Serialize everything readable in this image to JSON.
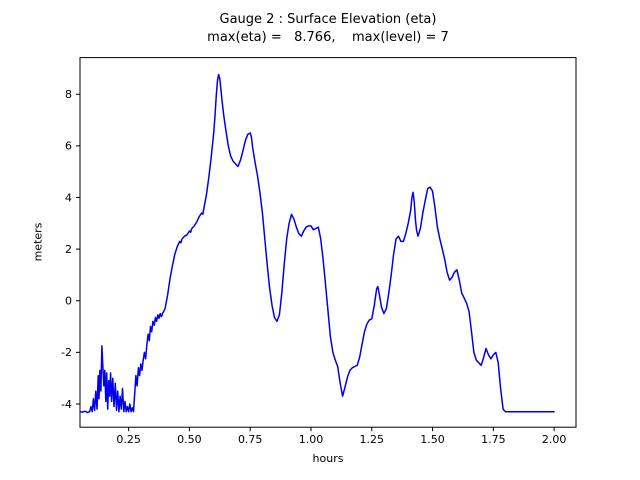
{
  "chart_data": {
    "type": "line",
    "title": "Gauge 2 : Surface Elevation (eta)",
    "subtitle": "max(eta) =   8.766,    max(level) = 7",
    "xlabel": "hours",
    "ylabel": "meters",
    "xlim": [
      0.05,
      2.09
    ],
    "ylim": [
      -4.9,
      9.42
    ],
    "xticks": [
      0.25,
      0.5,
      0.75,
      1.0,
      1.25,
      1.5,
      1.75,
      2.0
    ],
    "xtick_labels": [
      "0.25",
      "0.50",
      "0.75",
      "1.00",
      "1.25",
      "1.50",
      "1.75",
      "2.00"
    ],
    "yticks": [
      -4,
      -2,
      0,
      2,
      4,
      6,
      8
    ],
    "ytick_labels": [
      "-4",
      "-2",
      "0",
      "2",
      "4",
      "6",
      "8"
    ],
    "grid": false,
    "legend": null,
    "line_color": "#0000ee",
    "max_eta": 8.766,
    "max_level": 7,
    "series": [
      {
        "name": "eta",
        "points": [
          [
            0.05,
            -4.3
          ],
          [
            0.06,
            -4.32
          ],
          [
            0.07,
            -4.28
          ],
          [
            0.08,
            -4.33
          ],
          [
            0.09,
            -4.3
          ],
          [
            0.095,
            -4.1
          ],
          [
            0.1,
            -4.3
          ],
          [
            0.105,
            -3.8
          ],
          [
            0.11,
            -4.25
          ],
          [
            0.115,
            -3.5
          ],
          [
            0.12,
            -4.2
          ],
          [
            0.125,
            -2.9
          ],
          [
            0.128,
            -3.8
          ],
          [
            0.132,
            -2.7
          ],
          [
            0.136,
            -3.5
          ],
          [
            0.14,
            -1.75
          ],
          [
            0.144,
            -2.6
          ],
          [
            0.148,
            -3.3
          ],
          [
            0.152,
            -2.7
          ],
          [
            0.156,
            -3.9
          ],
          [
            0.16,
            -2.8
          ],
          [
            0.164,
            -4.2
          ],
          [
            0.168,
            -3.1
          ],
          [
            0.172,
            -3.7
          ],
          [
            0.176,
            -2.8
          ],
          [
            0.18,
            -3.9
          ],
          [
            0.185,
            -3.0
          ],
          [
            0.19,
            -4.1
          ],
          [
            0.195,
            -3.2
          ],
          [
            0.2,
            -4.25
          ],
          [
            0.205,
            -3.5
          ],
          [
            0.21,
            -4.3
          ],
          [
            0.215,
            -3.7
          ],
          [
            0.22,
            -4.2
          ],
          [
            0.225,
            -3.4
          ],
          [
            0.23,
            -4.3
          ],
          [
            0.235,
            -3.9
          ],
          [
            0.24,
            -4.3
          ],
          [
            0.245,
            -4.1
          ],
          [
            0.25,
            -4.3
          ],
          [
            0.255,
            -4.0
          ],
          [
            0.26,
            -4.3
          ],
          [
            0.265,
            -4.15
          ],
          [
            0.27,
            -4.3
          ],
          [
            0.275,
            -3.6
          ],
          [
            0.28,
            -2.9
          ],
          [
            0.285,
            -3.3
          ],
          [
            0.29,
            -2.6
          ],
          [
            0.295,
            -2.9
          ],
          [
            0.3,
            -2.45
          ],
          [
            0.305,
            -2.7
          ],
          [
            0.31,
            -2.3
          ],
          [
            0.315,
            -2.0
          ],
          [
            0.32,
            -2.25
          ],
          [
            0.325,
            -1.7
          ],
          [
            0.33,
            -1.3
          ],
          [
            0.335,
            -1.55
          ],
          [
            0.34,
            -1.0
          ],
          [
            0.345,
            -1.2
          ],
          [
            0.35,
            -0.8
          ],
          [
            0.355,
            -0.95
          ],
          [
            0.36,
            -0.65
          ],
          [
            0.365,
            -0.8
          ],
          [
            0.37,
            -0.55
          ],
          [
            0.375,
            -0.68
          ],
          [
            0.38,
            -0.5
          ],
          [
            0.385,
            -0.62
          ],
          [
            0.39,
            -0.48
          ],
          [
            0.395,
            -0.4
          ],
          [
            0.4,
            -0.3
          ],
          [
            0.41,
            0.2
          ],
          [
            0.42,
            0.85
          ],
          [
            0.43,
            1.35
          ],
          [
            0.44,
            1.8
          ],
          [
            0.45,
            2.1
          ],
          [
            0.46,
            2.3
          ],
          [
            0.465,
            2.25
          ],
          [
            0.47,
            2.4
          ],
          [
            0.48,
            2.5
          ],
          [
            0.49,
            2.55
          ],
          [
            0.5,
            2.7
          ],
          [
            0.505,
            2.65
          ],
          [
            0.51,
            2.8
          ],
          [
            0.52,
            2.9
          ],
          [
            0.53,
            3.05
          ],
          [
            0.54,
            3.25
          ],
          [
            0.55,
            3.4
          ],
          [
            0.555,
            3.35
          ],
          [
            0.56,
            3.6
          ],
          [
            0.57,
            4.1
          ],
          [
            0.58,
            4.8
          ],
          [
            0.59,
            5.6
          ],
          [
            0.6,
            6.5
          ],
          [
            0.605,
            7.1
          ],
          [
            0.61,
            7.9
          ],
          [
            0.615,
            8.5
          ],
          [
            0.62,
            8.766
          ],
          [
            0.625,
            8.6
          ],
          [
            0.63,
            8.15
          ],
          [
            0.635,
            7.7
          ],
          [
            0.64,
            7.25
          ],
          [
            0.65,
            6.6
          ],
          [
            0.66,
            6.0
          ],
          [
            0.67,
            5.6
          ],
          [
            0.68,
            5.4
          ],
          [
            0.69,
            5.3
          ],
          [
            0.7,
            5.2
          ],
          [
            0.71,
            5.45
          ],
          [
            0.72,
            5.8
          ],
          [
            0.73,
            6.2
          ],
          [
            0.74,
            6.45
          ],
          [
            0.75,
            6.5
          ],
          [
            0.755,
            6.35
          ],
          [
            0.76,
            5.95
          ],
          [
            0.77,
            5.35
          ],
          [
            0.78,
            4.85
          ],
          [
            0.79,
            4.2
          ],
          [
            0.8,
            3.4
          ],
          [
            0.81,
            2.4
          ],
          [
            0.82,
            1.4
          ],
          [
            0.83,
            0.5
          ],
          [
            0.84,
            -0.2
          ],
          [
            0.85,
            -0.65
          ],
          [
            0.86,
            -0.8
          ],
          [
            0.87,
            -0.55
          ],
          [
            0.88,
            0.3
          ],
          [
            0.89,
            1.4
          ],
          [
            0.9,
            2.4
          ],
          [
            0.91,
            3.0
          ],
          [
            0.92,
            3.35
          ],
          [
            0.93,
            3.15
          ],
          [
            0.94,
            2.85
          ],
          [
            0.95,
            2.6
          ],
          [
            0.96,
            2.5
          ],
          [
            0.97,
            2.7
          ],
          [
            0.98,
            2.85
          ],
          [
            0.99,
            2.9
          ],
          [
            1.0,
            2.9
          ],
          [
            1.01,
            2.75
          ],
          [
            1.02,
            2.8
          ],
          [
            1.03,
            2.85
          ],
          [
            1.04,
            2.4
          ],
          [
            1.05,
            1.6
          ],
          [
            1.06,
            0.6
          ],
          [
            1.07,
            -0.4
          ],
          [
            1.08,
            -1.4
          ],
          [
            1.09,
            -2.0
          ],
          [
            1.1,
            -2.3
          ],
          [
            1.11,
            -2.55
          ],
          [
            1.12,
            -3.2
          ],
          [
            1.13,
            -3.7
          ],
          [
            1.14,
            -3.35
          ],
          [
            1.15,
            -2.95
          ],
          [
            1.16,
            -2.7
          ],
          [
            1.17,
            -2.6
          ],
          [
            1.18,
            -2.55
          ],
          [
            1.19,
            -2.5
          ],
          [
            1.2,
            -2.2
          ],
          [
            1.21,
            -1.7
          ],
          [
            1.22,
            -1.2
          ],
          [
            1.23,
            -0.9
          ],
          [
            1.24,
            -0.75
          ],
          [
            1.25,
            -0.7
          ],
          [
            1.26,
            -0.2
          ],
          [
            1.27,
            0.45
          ],
          [
            1.275,
            0.55
          ],
          [
            1.28,
            0.3
          ],
          [
            1.29,
            -0.25
          ],
          [
            1.3,
            -0.5
          ],
          [
            1.31,
            -0.3
          ],
          [
            1.32,
            0.3
          ],
          [
            1.33,
            1.0
          ],
          [
            1.34,
            1.8
          ],
          [
            1.35,
            2.4
          ],
          [
            1.36,
            2.5
          ],
          [
            1.37,
            2.3
          ],
          [
            1.38,
            2.3
          ],
          [
            1.39,
            2.6
          ],
          [
            1.4,
            3.0
          ],
          [
            1.41,
            3.5
          ],
          [
            1.415,
            4.0
          ],
          [
            1.42,
            4.2
          ],
          [
            1.425,
            3.8
          ],
          [
            1.43,
            3.1
          ],
          [
            1.435,
            2.7
          ],
          [
            1.44,
            2.5
          ],
          [
            1.45,
            2.8
          ],
          [
            1.46,
            3.4
          ],
          [
            1.47,
            3.9
          ],
          [
            1.48,
            4.35
          ],
          [
            1.49,
            4.4
          ],
          [
            1.5,
            4.25
          ],
          [
            1.51,
            3.6
          ],
          [
            1.52,
            2.85
          ],
          [
            1.53,
            2.4
          ],
          [
            1.54,
            2.0
          ],
          [
            1.55,
            1.6
          ],
          [
            1.56,
            1.1
          ],
          [
            1.57,
            0.8
          ],
          [
            1.58,
            0.9
          ],
          [
            1.59,
            1.1
          ],
          [
            1.6,
            1.2
          ],
          [
            1.61,
            0.8
          ],
          [
            1.62,
            0.3
          ],
          [
            1.63,
            0.1
          ],
          [
            1.64,
            -0.1
          ],
          [
            1.65,
            -0.4
          ],
          [
            1.66,
            -1.2
          ],
          [
            1.67,
            -2.0
          ],
          [
            1.68,
            -2.3
          ],
          [
            1.69,
            -2.4
          ],
          [
            1.7,
            -2.5
          ],
          [
            1.71,
            -2.2
          ],
          [
            1.72,
            -1.85
          ],
          [
            1.73,
            -2.1
          ],
          [
            1.74,
            -2.25
          ],
          [
            1.75,
            -2.1
          ],
          [
            1.76,
            -2.0
          ],
          [
            1.77,
            -2.4
          ],
          [
            1.78,
            -3.4
          ],
          [
            1.79,
            -4.2
          ],
          [
            1.8,
            -4.3
          ],
          [
            1.85,
            -4.3
          ],
          [
            1.9,
            -4.3
          ],
          [
            1.95,
            -4.3
          ],
          [
            2.0,
            -4.3
          ]
        ]
      }
    ]
  }
}
